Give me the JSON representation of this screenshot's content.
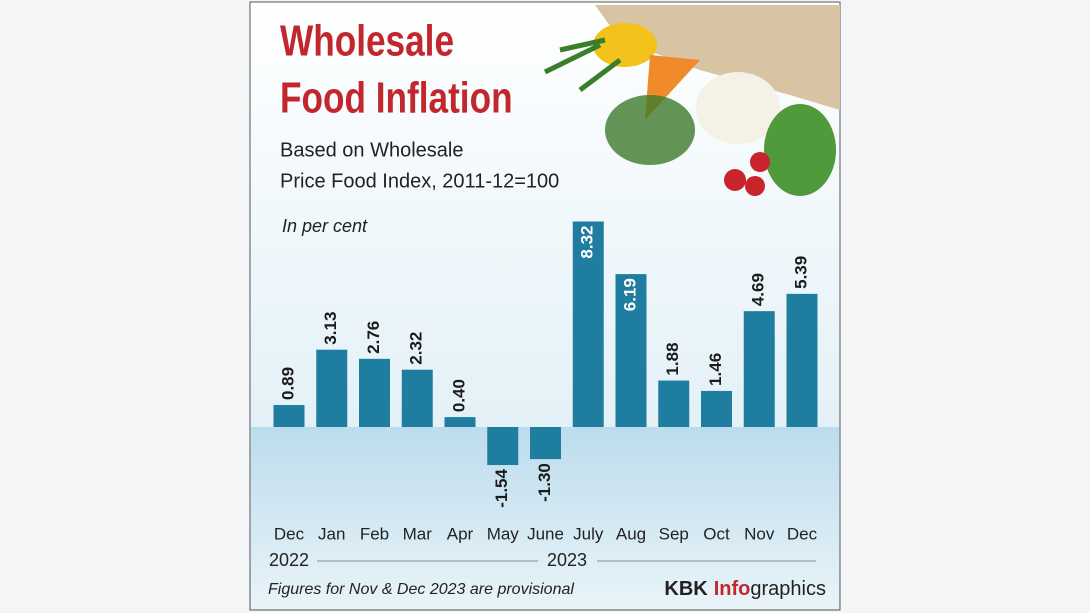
{
  "chart_data": {
    "type": "bar",
    "title_lines": [
      "Wholesale",
      "Food Inflation"
    ],
    "subtitle_lines": [
      "Based on Wholesale",
      "Price Food Index, 2011-12=100"
    ],
    "unit_label": "In per cent",
    "categories": [
      "Dec",
      "Jan",
      "Feb",
      "Mar",
      "Apr",
      "May",
      "June",
      "July",
      "Aug",
      "Sep",
      "Oct",
      "Nov",
      "Dec"
    ],
    "years": [
      "2022",
      "2023"
    ],
    "values": [
      0.89,
      3.13,
      2.76,
      2.32,
      0.4,
      -1.54,
      -1.3,
      8.32,
      6.19,
      1.88,
      1.46,
      4.69,
      5.39
    ],
    "value_labels": [
      "0.89",
      "3.13",
      "2.76",
      "2.32",
      "0.40",
      "-1.54",
      "-1.30",
      "8.32",
      "6.19",
      "1.88",
      "1.46",
      "4.69",
      "5.39"
    ],
    "color": "#1f7ea0",
    "note": "Figures for Nov & Dec 2023 are provisional",
    "source": {
      "name": "KBK",
      "highlight": "Info",
      "rest": "graphics"
    }
  }
}
